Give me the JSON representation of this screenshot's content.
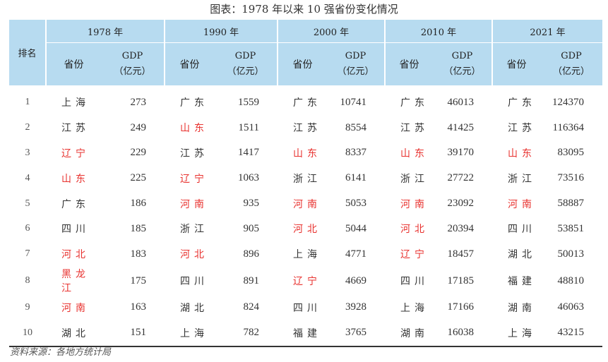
{
  "title": "图表：1978 年以来 10 强省份变化情况",
  "table": {
    "rank_header": "排名",
    "province_header": "省份",
    "gdp_header_line1": "GDP",
    "gdp_header_line2": "（亿元）",
    "highlight_color": "#e8322f",
    "years": [
      "1978 年",
      "1990 年",
      "2000 年",
      "2010 年",
      "2021 年"
    ],
    "rows": [
      {
        "rank": "1",
        "cells": [
          {
            "province": "上海",
            "gdp": "273",
            "red": false
          },
          {
            "province": "广东",
            "gdp": "1559",
            "red": false
          },
          {
            "province": "广东",
            "gdp": "10741",
            "red": false
          },
          {
            "province": "广东",
            "gdp": "46013",
            "red": false
          },
          {
            "province": "广东",
            "gdp": "124370",
            "red": false
          }
        ]
      },
      {
        "rank": "2",
        "cells": [
          {
            "province": "江苏",
            "gdp": "249",
            "red": false
          },
          {
            "province": "山东",
            "gdp": "1511",
            "red": true
          },
          {
            "province": "江苏",
            "gdp": "8554",
            "red": false
          },
          {
            "province": "江苏",
            "gdp": "41425",
            "red": false
          },
          {
            "province": "江苏",
            "gdp": "116364",
            "red": false
          }
        ]
      },
      {
        "rank": "3",
        "cells": [
          {
            "province": "辽宁",
            "gdp": "229",
            "red": true
          },
          {
            "province": "江苏",
            "gdp": "1417",
            "red": false
          },
          {
            "province": "山东",
            "gdp": "8337",
            "red": true
          },
          {
            "province": "山东",
            "gdp": "39170",
            "red": true
          },
          {
            "province": "山东",
            "gdp": "83095",
            "red": true
          }
        ]
      },
      {
        "rank": "4",
        "cells": [
          {
            "province": "山东",
            "gdp": "225",
            "red": true
          },
          {
            "province": "辽宁",
            "gdp": "1063",
            "red": true
          },
          {
            "province": "浙江",
            "gdp": "6141",
            "red": false
          },
          {
            "province": "浙江",
            "gdp": "27722",
            "red": false
          },
          {
            "province": "浙江",
            "gdp": "73516",
            "red": false
          }
        ]
      },
      {
        "rank": "5",
        "cells": [
          {
            "province": "广东",
            "gdp": "186",
            "red": false
          },
          {
            "province": "河南",
            "gdp": "935",
            "red": true
          },
          {
            "province": "河南",
            "gdp": "5053",
            "red": true
          },
          {
            "province": "河南",
            "gdp": "23092",
            "red": true
          },
          {
            "province": "河南",
            "gdp": "58887",
            "red": true
          }
        ]
      },
      {
        "rank": "6",
        "cells": [
          {
            "province": "四川",
            "gdp": "185",
            "red": false
          },
          {
            "province": "浙江",
            "gdp": "905",
            "red": false
          },
          {
            "province": "河北",
            "gdp": "5044",
            "red": true
          },
          {
            "province": "河北",
            "gdp": "20394",
            "red": true
          },
          {
            "province": "四川",
            "gdp": "53851",
            "red": false
          }
        ]
      },
      {
        "rank": "7",
        "cells": [
          {
            "province": "河北",
            "gdp": "183",
            "red": true
          },
          {
            "province": "河北",
            "gdp": "896",
            "red": true
          },
          {
            "province": "上海",
            "gdp": "4771",
            "red": false
          },
          {
            "province": "辽宁",
            "gdp": "18457",
            "red": true
          },
          {
            "province": "湖北",
            "gdp": "50013",
            "red": false
          }
        ]
      },
      {
        "rank": "8",
        "cells": [
          {
            "province": "黑龙江",
            "gdp": "175",
            "red": true
          },
          {
            "province": "四川",
            "gdp": "891",
            "red": false
          },
          {
            "province": "辽宁",
            "gdp": "4669",
            "red": true
          },
          {
            "province": "四川",
            "gdp": "17185",
            "red": false
          },
          {
            "province": "福建",
            "gdp": "48810",
            "red": false
          }
        ]
      },
      {
        "rank": "9",
        "cells": [
          {
            "province": "河南",
            "gdp": "163",
            "red": true
          },
          {
            "province": "湖北",
            "gdp": "824",
            "red": false
          },
          {
            "province": "四川",
            "gdp": "3928",
            "red": false
          },
          {
            "province": "上海",
            "gdp": "17166",
            "red": false
          },
          {
            "province": "湖南",
            "gdp": "46063",
            "red": false
          }
        ]
      },
      {
        "rank": "10",
        "cells": [
          {
            "province": "湖北",
            "gdp": "151",
            "red": false
          },
          {
            "province": "上海",
            "gdp": "782",
            "red": false
          },
          {
            "province": "福建",
            "gdp": "3765",
            "red": false
          },
          {
            "province": "湖南",
            "gdp": "16038",
            "red": false
          },
          {
            "province": "上海",
            "gdp": "43215",
            "red": false
          }
        ]
      }
    ]
  },
  "source_note": "资料来源：各地方统计局"
}
